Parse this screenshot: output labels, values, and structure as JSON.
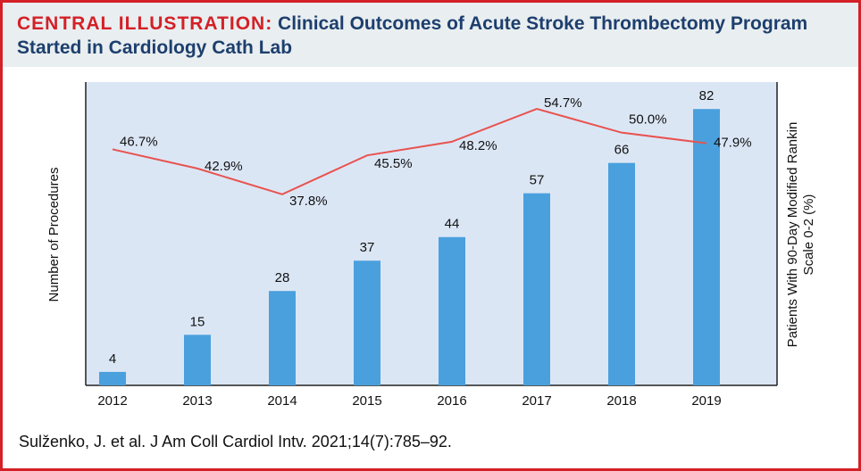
{
  "label": "CENTRAL ILLUSTRATION:",
  "title": "Clinical Outcomes of Acute Stroke Thrombectomy Program Started in Cardiology Cath Lab",
  "citation": "Sulženko, J. et al. J Am Coll Cardiol Intv. 2021;14(7):785–92.",
  "chart_data": {
    "type": "bar_line",
    "y_label": "Number of Procedures",
    "y2_label": [
      "Patients With 90-Day Modified Rankin",
      "Scale 0-2 (%)"
    ],
    "categories": [
      "2012",
      "2013",
      "2014",
      "2015",
      "2016",
      "2017",
      "2018",
      "2019"
    ],
    "ylim": [
      0,
      90
    ],
    "y2lim": [
      0,
      60
    ],
    "series": [
      {
        "name": "Number of Procedures",
        "type": "bar",
        "color": "#4aa0dd",
        "values": [
          4,
          15,
          28,
          37,
          44,
          57,
          66,
          82
        ]
      },
      {
        "name": "Patients With 90-Day Modified Rankin Scale 0-2 (%)",
        "type": "line",
        "axis": "y2",
        "color": "#e8534f",
        "values": [
          46.7,
          42.9,
          37.8,
          45.5,
          48.2,
          54.7,
          50.0,
          47.9
        ],
        "value_labels": [
          "46.7%",
          "42.9%",
          "37.8%",
          "45.5%",
          "48.2%",
          "54.7%",
          "50.0%",
          "47.9%"
        ]
      }
    ]
  }
}
